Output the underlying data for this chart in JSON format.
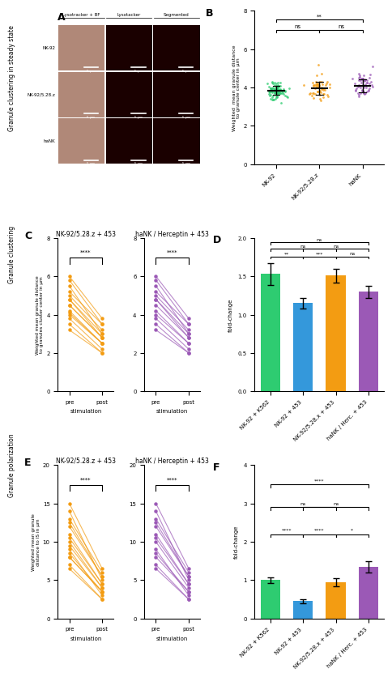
{
  "panel_B": {
    "ylabel": "Weighted  mean granule distance\nto granule center in μm",
    "groups": [
      "NK-92",
      "NK-92/5.28.z",
      "haNK"
    ],
    "means": [
      3.85,
      3.95,
      4.1
    ],
    "errors": [
      0.35,
      0.45,
      0.65
    ],
    "colors": [
      "#2ecc71",
      "#f39c12",
      "#9b59b6"
    ],
    "ylim": [
      0,
      8
    ],
    "yticks": [
      0,
      2,
      4,
      6,
      8
    ],
    "n_dots": [
      90,
      55,
      55
    ]
  },
  "panel_C_left": {
    "title": "NK-92/5.28.z + 453",
    "ylabel": "Weighted mean granule distance\nto granules cluster center in μm",
    "ylim": [
      0,
      8
    ],
    "yticks": [
      0,
      2,
      4,
      6,
      8
    ],
    "color": "#f39c12",
    "significance": "****",
    "pre_values": [
      5.5,
      4.8,
      4.2,
      5.0,
      3.8,
      4.5,
      5.2,
      3.5,
      4.0,
      6.0,
      4.8,
      3.2,
      5.8,
      4.5,
      4.1
    ],
    "post_values": [
      3.0,
      2.8,
      2.5,
      3.2,
      2.2,
      2.8,
      3.5,
      2.0,
      2.5,
      3.8,
      3.0,
      2.0,
      3.5,
      2.8,
      2.5
    ]
  },
  "panel_C_right": {
    "title": "haNK / Herceptin + 453",
    "ylim": [
      0,
      8
    ],
    "yticks": [
      0,
      2,
      4,
      6,
      8
    ],
    "color": "#9b59b6",
    "significance": "****",
    "pre_values": [
      5.5,
      4.8,
      4.2,
      5.0,
      3.8,
      4.5,
      5.2,
      3.5,
      4.0,
      6.0,
      4.8,
      3.2,
      5.8
    ],
    "post_values": [
      3.0,
      2.8,
      2.5,
      3.2,
      2.2,
      2.8,
      3.5,
      2.0,
      2.5,
      3.8,
      3.0,
      2.0,
      3.5
    ]
  },
  "panel_D": {
    "ylabel": "fold-change",
    "groups": [
      "NK-92 + K562",
      "NK-92 + 453",
      "NK-92/5.28.x + 453",
      "haNK / Herc. + 453"
    ],
    "values": [
      1.53,
      1.15,
      1.51,
      1.3
    ],
    "errors": [
      0.14,
      0.07,
      0.09,
      0.08
    ],
    "colors": [
      "#2ecc71",
      "#3498db",
      "#f39c12",
      "#9b59b6"
    ],
    "ylim": [
      0,
      2.0
    ],
    "yticks": [
      0.0,
      0.5,
      1.0,
      1.5,
      2.0
    ]
  },
  "panel_E_left": {
    "title": "NK-92/5.28.z + 453",
    "ylabel": "Weighted mean granule\ndistance to IS in μm",
    "ylim": [
      0,
      20
    ],
    "yticks": [
      0,
      5,
      10,
      15,
      20
    ],
    "color": "#f39c12",
    "significance": "****",
    "pre_values": [
      14.0,
      10.0,
      8.0,
      12.0,
      9.0,
      11.0,
      13.0,
      7.0,
      8.5,
      15.0,
      10.5,
      6.5,
      12.5,
      9.5,
      8.0
    ],
    "post_values": [
      5.0,
      4.0,
      3.5,
      5.5,
      3.0,
      4.5,
      6.0,
      2.5,
      3.5,
      6.5,
      4.5,
      2.5,
      5.5,
      4.0,
      3.5
    ]
  },
  "panel_E_right": {
    "title": "haNK / Herceptin + 453",
    "ylim": [
      0,
      20
    ],
    "yticks": [
      0,
      5,
      10,
      15,
      20
    ],
    "color": "#9b59b6",
    "significance": "****",
    "pre_values": [
      14.0,
      10.0,
      8.0,
      12.0,
      9.0,
      11.0,
      13.0,
      7.0,
      8.5,
      15.0,
      10.5,
      6.5,
      12.5
    ],
    "post_values": [
      5.0,
      4.0,
      3.5,
      5.5,
      3.0,
      4.5,
      6.0,
      2.5,
      3.5,
      6.5,
      4.5,
      2.5,
      5.5
    ]
  },
  "panel_F": {
    "ylabel": "fold-change",
    "groups": [
      "NK-92 + K562",
      "NK-92 + 453",
      "NK-92/5.28.x + 453",
      "haNK / Herc. + 453"
    ],
    "values": [
      1.0,
      0.45,
      0.95,
      1.35
    ],
    "errors": [
      0.08,
      0.05,
      0.1,
      0.15
    ],
    "colors": [
      "#2ecc71",
      "#3498db",
      "#f39c12",
      "#9b59b6"
    ],
    "ylim": [
      0,
      4
    ],
    "yticks": [
      0,
      1,
      2,
      3,
      4
    ]
  },
  "panel_A": {
    "col_headers": [
      "Lysotracker + BF",
      "Lysotacker",
      "Segmented"
    ],
    "row_labels": [
      "NK-92",
      "NK-92/5.28.z",
      "haNK"
    ],
    "bf_color": "#b08878",
    "fluo_color": "#1a0000",
    "scale_bar_text": "5 μm"
  },
  "side_labels": [
    "Granule clustering in steady state",
    "Granule clustering",
    "Granule polarization"
  ],
  "bg_color": "#ffffff"
}
